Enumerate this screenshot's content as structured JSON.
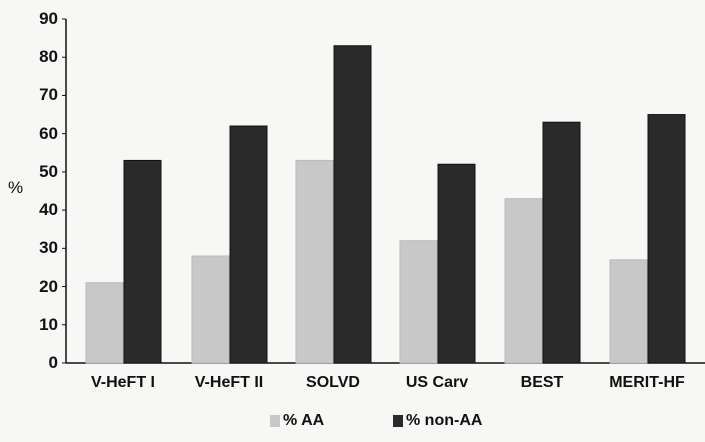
{
  "chart_data": {
    "type": "bar",
    "title": "",
    "xlabel": "",
    "ylabel": "%",
    "ylim": [
      0,
      90
    ],
    "yticks": [
      0,
      10,
      20,
      30,
      40,
      50,
      60,
      70,
      80,
      90
    ],
    "grid": false,
    "legend_position": "bottom",
    "categories": [
      "V-HeFT I",
      "V-HeFT II",
      "SOLVD",
      "US Carv",
      "BEST",
      "MERIT-HF"
    ],
    "series": [
      {
        "name": "% AA",
        "color": "#c8c8c8",
        "values": [
          21,
          28,
          53,
          32,
          43,
          27
        ]
      },
      {
        "name": "% non-AA",
        "color": "#2a2a2a",
        "values": [
          53,
          62,
          83,
          52,
          63,
          65
        ]
      }
    ]
  }
}
